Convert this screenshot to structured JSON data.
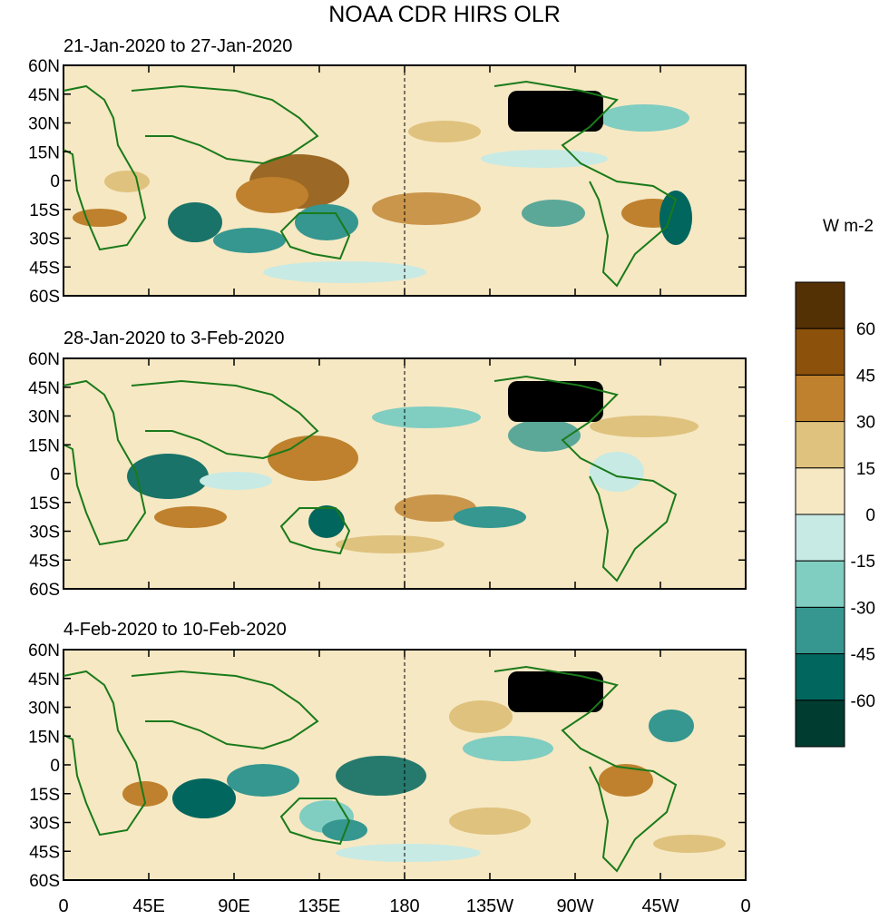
{
  "title": "NOAA CDR HIRS OLR",
  "panels": [
    {
      "title": "21-Jan-2020 to 27-Jan-2020"
    },
    {
      "title": "28-Jan-2020 to 3-Feb-2020"
    },
    {
      "title": "4-Feb-2020 to 10-Feb-2020"
    }
  ],
  "lat_labels": [
    "60N",
    "45N",
    "30N",
    "15N",
    "0",
    "15S",
    "30S",
    "45S",
    "60S"
  ],
  "lon_labels": [
    "0",
    "45E",
    "90E",
    "135E",
    "180",
    "135W",
    "90W",
    "45W",
    "0"
  ],
  "colorbar": {
    "unit": "W m-2",
    "labels": [
      "60",
      "45",
      "30",
      "15",
      "0",
      "-15",
      "-30",
      "-45",
      "-60"
    ],
    "colors": [
      "#543005",
      "#8c510a",
      "#bf812d",
      "#dfc27d",
      "#f6e8c3",
      "#c7eae5",
      "#80cdc1",
      "#35978f",
      "#01665e",
      "#003c30"
    ]
  }
}
